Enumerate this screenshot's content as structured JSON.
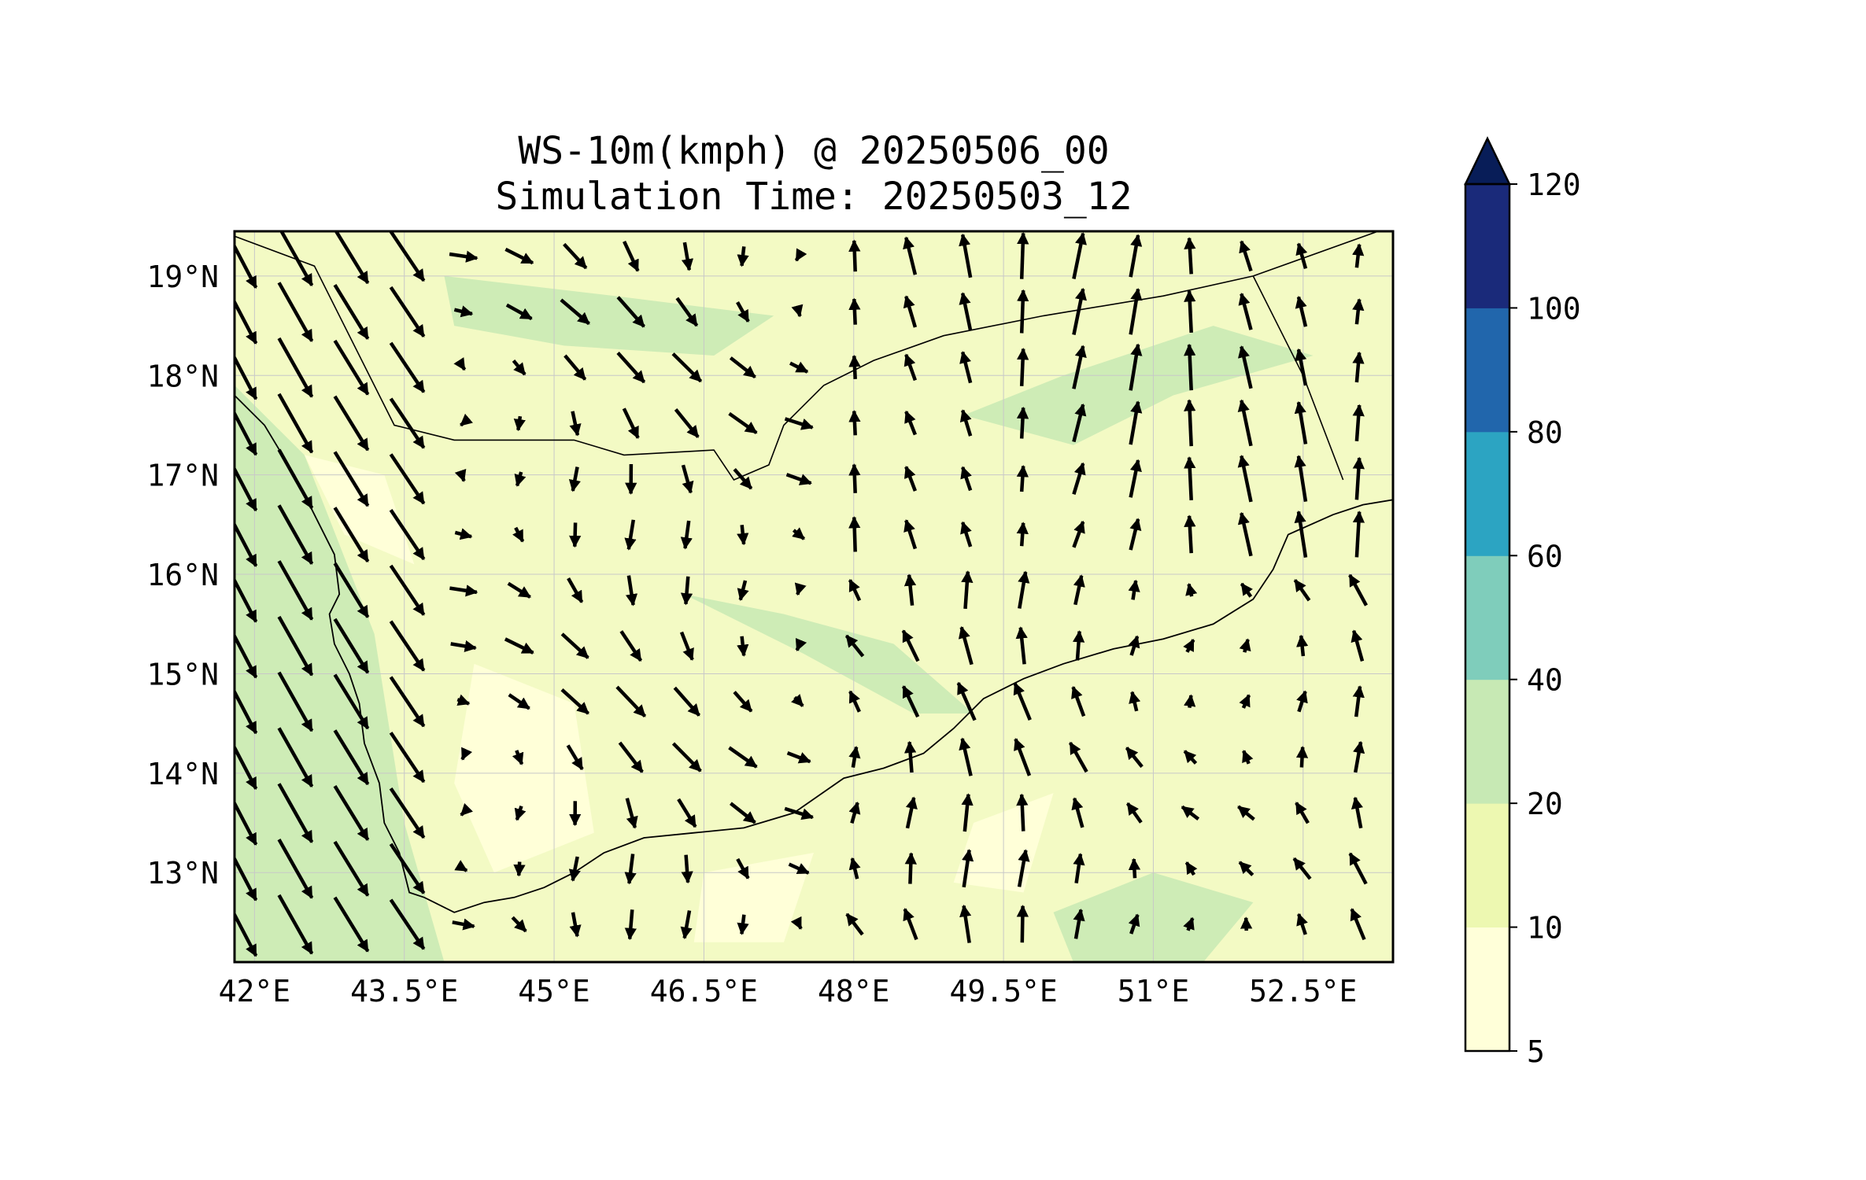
{
  "title": {
    "line1": "WS-10m(kmph) @ 20250506_00",
    "line2": "Simulation Time: 20250503_12"
  },
  "map": {
    "lon_range": [
      41.8,
      53.4
    ],
    "lat_range": [
      12.1,
      19.45
    ],
    "lon_ticks": [
      42,
      43.5,
      45,
      46.5,
      48,
      49.5,
      51,
      52.5
    ],
    "lon_tick_labels": [
      "42°E",
      "43.5°E",
      "45°E",
      "46.5°E",
      "48°E",
      "49.5°E",
      "51°E",
      "52.5°E"
    ],
    "lat_ticks": [
      13,
      14,
      15,
      16,
      17,
      18,
      19
    ],
    "lat_tick_labels": [
      "13°N",
      "14°N",
      "15°N",
      "16°N",
      "17°N",
      "18°N",
      "19°N"
    ],
    "grid": true,
    "coastline": [
      [
        41.8,
        17.8
      ],
      [
        42.1,
        17.5
      ],
      [
        42.4,
        17.0
      ],
      [
        42.6,
        16.6
      ],
      [
        42.8,
        16.2
      ],
      [
        42.85,
        15.8
      ],
      [
        42.75,
        15.6
      ],
      [
        42.8,
        15.3
      ],
      [
        42.95,
        15.0
      ],
      [
        43.05,
        14.7
      ],
      [
        43.1,
        14.3
      ],
      [
        43.25,
        13.9
      ],
      [
        43.3,
        13.5
      ],
      [
        43.45,
        13.2
      ],
      [
        43.55,
        12.8
      ],
      [
        43.7,
        12.75
      ],
      [
        44.0,
        12.6
      ],
      [
        44.3,
        12.7
      ],
      [
        44.6,
        12.75
      ],
      [
        44.9,
        12.85
      ],
      [
        45.2,
        13.0
      ],
      [
        45.5,
        13.2
      ],
      [
        45.9,
        13.35
      ],
      [
        46.4,
        13.4
      ],
      [
        46.9,
        13.45
      ],
      [
        47.4,
        13.6
      ],
      [
        47.9,
        13.95
      ],
      [
        48.3,
        14.05
      ],
      [
        48.7,
        14.2
      ],
      [
        49.0,
        14.45
      ],
      [
        49.3,
        14.75
      ],
      [
        49.7,
        14.95
      ],
      [
        50.1,
        15.1
      ],
      [
        50.6,
        15.25
      ],
      [
        51.1,
        15.35
      ],
      [
        51.6,
        15.5
      ],
      [
        52.0,
        15.75
      ],
      [
        52.2,
        16.05
      ],
      [
        52.35,
        16.4
      ],
      [
        52.8,
        16.6
      ],
      [
        53.1,
        16.7
      ],
      [
        53.4,
        16.75
      ]
    ],
    "borders": [
      [
        [
          41.8,
          19.4
        ],
        [
          42.6,
          19.1
        ],
        [
          43.4,
          17.5
        ],
        [
          44.0,
          17.35
        ],
        [
          45.2,
          17.35
        ],
        [
          45.7,
          17.2
        ],
        [
          46.6,
          17.25
        ],
        [
          46.8,
          16.95
        ],
        [
          47.15,
          17.1
        ],
        [
          47.3,
          17.5
        ],
        [
          47.7,
          17.9
        ],
        [
          48.2,
          18.15
        ],
        [
          48.9,
          18.4
        ],
        [
          49.9,
          18.6
        ],
        [
          51.1,
          18.8
        ],
        [
          52.0,
          19.0
        ],
        [
          53.25,
          19.45
        ]
      ],
      [
        [
          52.0,
          19.0
        ],
        [
          52.5,
          18.0
        ],
        [
          52.9,
          16.95
        ]
      ]
    ],
    "land_color": "#f3fac4"
  },
  "colorbar": {
    "levels": [
      5,
      10,
      20,
      40,
      60,
      80,
      100,
      120
    ],
    "tick_labels": [
      "5",
      "10",
      "20",
      "40",
      "60",
      "80",
      "100",
      "120"
    ],
    "colors": [
      "#ffffd9",
      "#edf8b1",
      "#c7e9b4",
      "#7fcdbb",
      "#2ca4c2",
      "#2166ac",
      "#1a2a7a"
    ],
    "extend_color": "#081d58",
    "extend": "max"
  },
  "wind": {
    "start": {
      "lon": 41.85,
      "lat": 19.2
    },
    "step": {
      "lon": 0.56,
      "lat": 0.56
    },
    "ref_length_deg": 0.6
  }
}
